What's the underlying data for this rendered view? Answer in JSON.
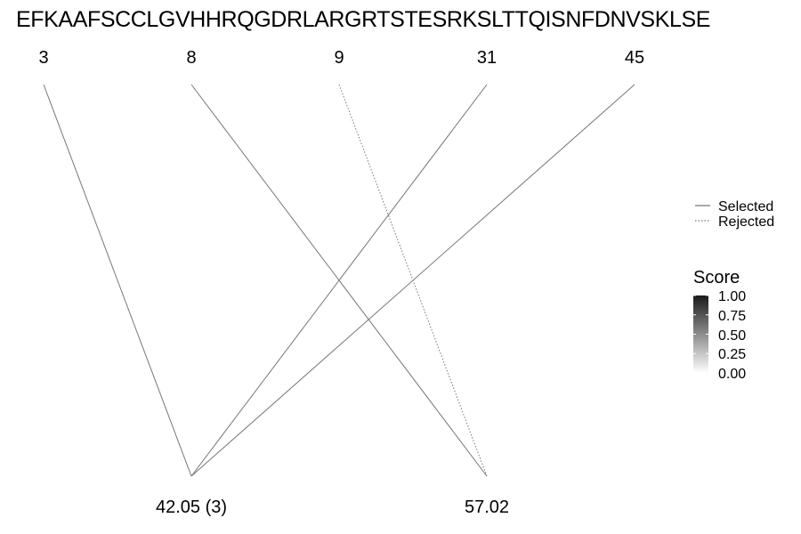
{
  "sequence": "EFKAAFSCCLGVHHRQGDRLARGRTSTESRKSLTTQISNFDNVSKLSE",
  "positions": [
    "3",
    "8",
    "9",
    "31",
    "45"
  ],
  "masses": [
    "42.05 (3)",
    "57.02"
  ],
  "connections": [
    {
      "from": 0,
      "to": 0,
      "status": "selected",
      "score": 0.55
    },
    {
      "from": 1,
      "to": 1,
      "status": "selected",
      "score": 0.55
    },
    {
      "from": 2,
      "to": 1,
      "status": "rejected",
      "score": 0.55
    },
    {
      "from": 3,
      "to": 0,
      "status": "selected",
      "score": 0.55
    },
    {
      "from": 4,
      "to": 0,
      "status": "selected",
      "score": 0.55
    }
  ],
  "legend": {
    "selected_label": "Selected",
    "rejected_label": "Rejected",
    "score_title": "Score",
    "score_ticks": [
      "1.00",
      "0.75",
      "0.50",
      "0.25",
      "0.00"
    ]
  },
  "colors": {
    "line": "#777777",
    "text": "#000000",
    "score_high": "#1a1a1a",
    "score_low": "#ffffff"
  }
}
